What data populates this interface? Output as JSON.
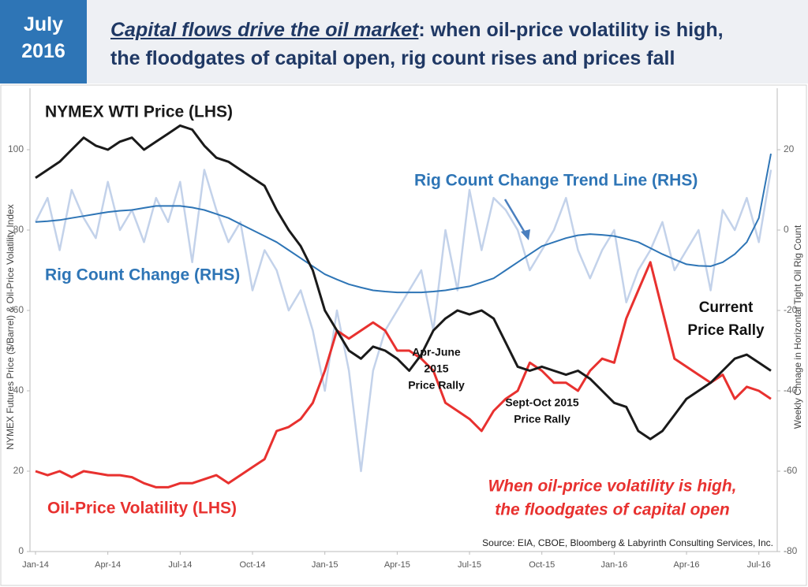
{
  "chart_data": {
    "type": "line",
    "badge": [
      "July",
      "2016"
    ],
    "title": [
      "Capital flows drive the oil market",
      ": when oil-price volatility is high,",
      "the floodgates of capital open, rig count rises and prices fall"
    ],
    "ylabel": "NYMEX Futures Price ($/Barrel) & Oil-Price Volatility Index",
    "y2label": "Weekly Chnage in Horizontal Tight Oil Rig Count",
    "source": "Source:  EIA, CBOE, Bloomberg & Labyrinth Consulting Services, Inc.",
    "annotations": [
      [
        "Apr-June",
        "2015",
        "Price Rally"
      ],
      [
        "Sept-Oct 2015",
        "Price Rally"
      ],
      [
        "Current",
        "Price Rally"
      ],
      [
        "When oil-price volatility is high,",
        "the floodgates of capital open"
      ]
    ],
    "x": [
      0,
      0.5,
      1,
      1.5,
      2,
      2.5,
      3,
      3.5,
      4,
      4.5,
      5,
      5.5,
      6,
      6.5,
      7,
      7.5,
      8,
      8.5,
      9,
      9.5,
      10,
      10.5,
      11,
      11.5,
      12,
      12.5,
      13,
      13.5,
      14,
      14.5,
      15,
      15.5,
      16,
      16.5,
      17,
      17.5,
      18,
      18.5,
      19,
      19.5,
      20,
      20.5,
      21,
      21.5,
      22,
      22.5,
      23,
      23.5,
      24,
      24.5,
      25,
      25.5,
      26,
      26.5,
      27,
      27.5,
      28,
      28.5,
      29,
      29.5,
      30,
      30.5
    ],
    "xlim": [
      0,
      30.5
    ],
    "xticks": [
      {
        "value": 0,
        "label": "Jan-14"
      },
      {
        "value": 3,
        "label": "Apr-14"
      },
      {
        "value": 6,
        "label": "Jul-14"
      },
      {
        "value": 9,
        "label": "Oct-14"
      },
      {
        "value": 12,
        "label": "Jan-15"
      },
      {
        "value": 15,
        "label": "Apr-15"
      },
      {
        "value": 18,
        "label": "Jul-15"
      },
      {
        "value": 21,
        "label": "Oct-15"
      },
      {
        "value": 24,
        "label": "Jan-16"
      },
      {
        "value": 27,
        "label": "Apr-16"
      },
      {
        "value": 30,
        "label": "Jul-16"
      }
    ],
    "ylim": [
      0,
      100
    ],
    "yticks": [
      0,
      20,
      40,
      60,
      80,
      100
    ],
    "y2lim": [
      -80,
      20
    ],
    "y2ticks": [
      -80,
      -60,
      -40,
      -20,
      0,
      20
    ],
    "series": [
      {
        "name": "Rig Count Change (RHS)",
        "color": "#c3d2ea",
        "axis": "y2",
        "values": [
          2,
          8,
          -5,
          10,
          3,
          -2,
          12,
          0,
          5,
          -3,
          8,
          2,
          12,
          -8,
          15,
          5,
          -3,
          2,
          -15,
          -5,
          -10,
          -20,
          -15,
          -25,
          -40,
          -20,
          -35,
          -60,
          -35,
          -25,
          -20,
          -15,
          -10,
          -25,
          0,
          -15,
          10,
          -5,
          8,
          5,
          0,
          -10,
          -5,
          0,
          8,
          -5,
          -12,
          -5,
          0,
          -18,
          -10,
          -5,
          2,
          -10,
          -5,
          0,
          -15,
          5,
          0,
          8,
          -3,
          15
        ]
      },
      {
        "name": "Rig Count Change Trend Line (RHS)",
        "color": "#2e75b6",
        "axis": "y2",
        "values": [
          2,
          2.2,
          2.5,
          3,
          3.5,
          4,
          4.5,
          4.8,
          5,
          5.5,
          6,
          6,
          6,
          5.6,
          5,
          4,
          3,
          1.5,
          0,
          -1.5,
          -3,
          -5,
          -7,
          -9,
          -11,
          -12.3,
          -13.5,
          -14.3,
          -15,
          -15.3,
          -15.5,
          -15.5,
          -15.5,
          -15.3,
          -15,
          -14.5,
          -14,
          -13,
          -12,
          -10,
          -8,
          -6,
          -4,
          -3,
          -2,
          -1.3,
          -1,
          -1.2,
          -1.5,
          -2.2,
          -3,
          -4.5,
          -6,
          -7.3,
          -8.5,
          -8.9,
          -9,
          -8,
          -6,
          -3,
          3,
          19
        ]
      },
      {
        "name": "Oil-Price Volatility (LHS)",
        "color": "#e8312f",
        "values": [
          20,
          19,
          20,
          18.5,
          20,
          19.5,
          19,
          19,
          18.5,
          17,
          16,
          16,
          17,
          17,
          18,
          19,
          17,
          19,
          21,
          23,
          30,
          31,
          33,
          37,
          45,
          55,
          53,
          55,
          57,
          55,
          50,
          50,
          48,
          45,
          37,
          35,
          33,
          30,
          35,
          38,
          40,
          47,
          45,
          42,
          42,
          40,
          45,
          48,
          47,
          58,
          65,
          72,
          60,
          48,
          46,
          44,
          42,
          44,
          38,
          41,
          40,
          38
        ]
      },
      {
        "name": "NYMEX WTI Price (LHS)",
        "color": "#1a1a1a",
        "values": [
          93,
          95,
          97,
          100,
          103,
          101,
          100,
          102,
          103,
          100,
          102,
          104,
          106,
          105,
          101,
          98,
          97,
          95,
          93,
          91,
          85,
          80,
          76,
          70,
          60,
          55,
          50,
          48,
          51,
          50,
          48,
          45,
          49,
          55,
          58,
          60,
          59,
          60,
          58,
          52,
          46,
          45,
          46,
          45,
          44,
          45,
          43,
          40,
          37,
          36,
          30,
          28,
          30,
          34,
          38,
          40,
          42,
          45,
          48,
          49,
          47,
          45
        ]
      }
    ]
  }
}
